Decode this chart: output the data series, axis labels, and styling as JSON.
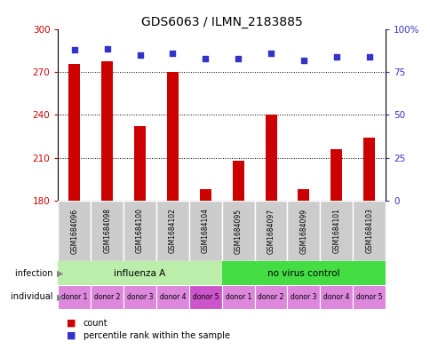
{
  "title": "GDS6063 / ILMN_2183885",
  "samples": [
    "GSM1684096",
    "GSM1684098",
    "GSM1684100",
    "GSM1684102",
    "GSM1684104",
    "GSM1684095",
    "GSM1684097",
    "GSM1684099",
    "GSM1684101",
    "GSM1684103"
  ],
  "counts": [
    276,
    278,
    232,
    270,
    188,
    208,
    240,
    188,
    216,
    224
  ],
  "percentile_ranks": [
    88,
    89,
    85,
    86,
    83,
    83,
    86,
    82,
    84,
    84
  ],
  "ylim_left": [
    180,
    300
  ],
  "ylim_right": [
    0,
    100
  ],
  "yticks_left": [
    180,
    210,
    240,
    270,
    300
  ],
  "yticks_right": [
    0,
    25,
    50,
    75,
    100
  ],
  "ytick_right_labels": [
    "0",
    "25",
    "50",
    "75",
    "100%"
  ],
  "bar_color": "#cc0000",
  "dot_color": "#3333cc",
  "infection_groups": [
    {
      "label": "influenza A",
      "start": 0,
      "end": 5,
      "color": "#bbeeaa"
    },
    {
      "label": "no virus control",
      "start": 5,
      "end": 10,
      "color": "#44dd44"
    }
  ],
  "individual_labels": [
    "donor 1",
    "donor 2",
    "donor 3",
    "donor 4",
    "donor 5",
    "donor 1",
    "donor 2",
    "donor 3",
    "donor 4",
    "donor 5"
  ],
  "individual_colors_all": "#dd88dd",
  "individual_color_special": "#cc55cc",
  "individual_special_idx": 4,
  "grid_color": "black",
  "sample_bg_color": "#cccccc",
  "left_label_color": "#888888",
  "xlabel_color_left": "#cc0000",
  "xlabel_color_right": "#3333cc",
  "legend_count_color": "#cc0000",
  "legend_dot_color": "#3333cc",
  "bar_width": 0.35
}
